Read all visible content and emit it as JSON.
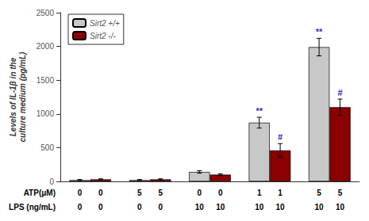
{
  "chart_data": {
    "type": "bar",
    "categories": [
      null,
      null,
      null,
      null,
      null
    ],
    "series": [
      {
        "name": "Sirt2 +/+",
        "color": "#C8C8C8",
        "values": [
          20,
          20,
          140,
          870,
          1990
        ],
        "errors": [
          8,
          8,
          18,
          80,
          130
        ]
      },
      {
        "name": "Sirt2 -/-",
        "color": "#8B0000",
        "values": [
          30,
          30,
          100,
          460,
          1100
        ],
        "errors": [
          8,
          8,
          12,
          100,
          120
        ]
      }
    ],
    "ylabel": "Levels of IL-1β in the\nculture medium (pg/mL)",
    "ylim": [
      0,
      2500
    ],
    "yticks": [
      0,
      500,
      1000,
      1500,
      2000,
      2500
    ],
    "legend": "upper left",
    "grid": false,
    "tick_labels": "y",
    "annotations": [
      {
        "text": "**",
        "series": "Sirt2 +/+",
        "category_index": 3,
        "color": "#3333BB"
      },
      {
        "text": "#",
        "series": "Sirt2 -/-",
        "category_index": 3,
        "color": "#3333BB"
      },
      {
        "text": "**",
        "series": "Sirt2 +/+",
        "category_index": 4,
        "color": "#3333BB"
      },
      {
        "text": "#",
        "series": "Sirt2 -/-",
        "category_index": 4,
        "color": "#3333BB"
      }
    ],
    "rows": [
      {
        "label": "ATP(μM)",
        "values": [
          "0",
          "5",
          "0",
          "1",
          "5"
        ]
      },
      {
        "label": "LPS (ng/mL)",
        "values": [
          "0",
          "0",
          "10",
          "10",
          "10"
        ]
      }
    ]
  }
}
